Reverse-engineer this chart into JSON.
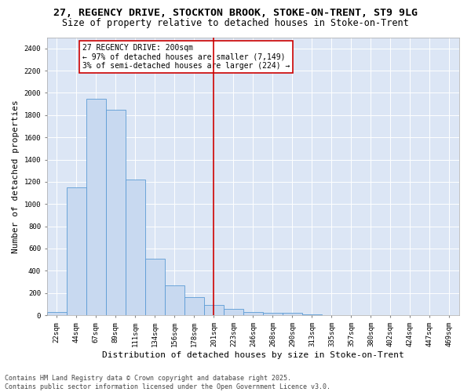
{
  "title_line1": "27, REGENCY DRIVE, STOCKTON BROOK, STOKE-ON-TRENT, ST9 9LG",
  "title_line2": "Size of property relative to detached houses in Stoke-on-Trent",
  "xlabel": "Distribution of detached houses by size in Stoke-on-Trent",
  "ylabel": "Number of detached properties",
  "categories": [
    "22sqm",
    "44sqm",
    "67sqm",
    "89sqm",
    "111sqm",
    "134sqm",
    "156sqm",
    "178sqm",
    "201sqm",
    "223sqm",
    "246sqm",
    "268sqm",
    "290sqm",
    "313sqm",
    "335sqm",
    "357sqm",
    "380sqm",
    "402sqm",
    "424sqm",
    "447sqm",
    "469sqm"
  ],
  "values": [
    30,
    1150,
    1950,
    1850,
    1220,
    510,
    270,
    160,
    90,
    60,
    30,
    20,
    20,
    5,
    2,
    1,
    1,
    0,
    0,
    0,
    0
  ],
  "bar_color": "#c8d9f0",
  "bar_edge_color": "#5b9bd5",
  "vline_x": 8,
  "vline_color": "#cc0000",
  "annotation_title": "27 REGENCY DRIVE: 200sqm",
  "annotation_line2": "← 97% of detached houses are smaller (7,149)",
  "annotation_line3": "3% of semi-detached houses are larger (224) →",
  "annotation_box_color": "#cc0000",
  "ylim": [
    0,
    2500
  ],
  "yticks": [
    0,
    200,
    400,
    600,
    800,
    1000,
    1200,
    1400,
    1600,
    1800,
    2000,
    2200,
    2400
  ],
  "footer_line1": "Contains HM Land Registry data © Crown copyright and database right 2025.",
  "footer_line2": "Contains public sector information licensed under the Open Government Licence v3.0.",
  "fig_bg_color": "#ffffff",
  "plot_bg_color": "#dce6f5",
  "grid_color": "#ffffff",
  "title_fontsize": 9.5,
  "subtitle_fontsize": 8.5,
  "axis_label_fontsize": 8,
  "tick_fontsize": 6.5,
  "annotation_fontsize": 7,
  "footer_fontsize": 6
}
